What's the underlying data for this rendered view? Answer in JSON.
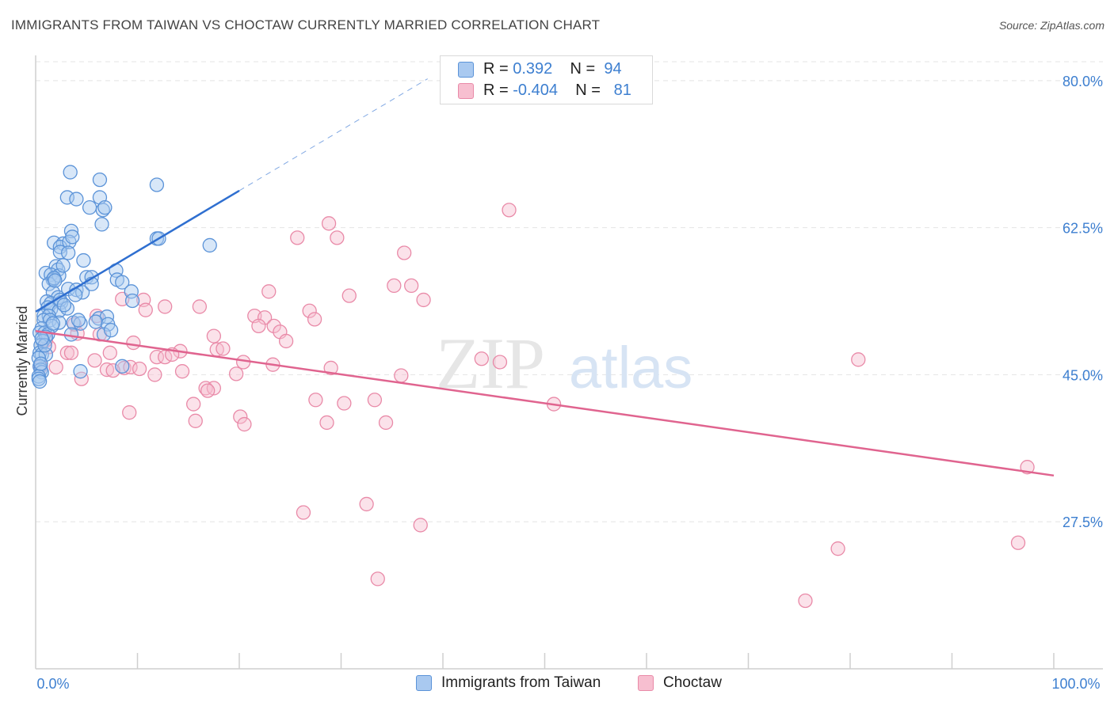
{
  "title": "IMMIGRANTS FROM TAIWAN VS CHOCTAW CURRENTLY MARRIED CORRELATION CHART",
  "source": "Source: ZipAtlas.com",
  "watermark": {
    "zip": "ZIP",
    "atlas": "atlas"
  },
  "colors": {
    "taiwan_fill": "#a9c9f0",
    "taiwan_stroke": "#5b93d8",
    "taiwan_line": "#2f6fd0",
    "choctaw_fill": "#f7bfd0",
    "choctaw_stroke": "#e98aa8",
    "choctaw_line": "#e0648f",
    "tick_label": "#3d7fd0",
    "grid": "#e4e4e4"
  },
  "legend": {
    "taiwan": {
      "r_label": "R = ",
      "r_value": " 0.392",
      "n_label": "N = ",
      "n_value": "94"
    },
    "choctaw": {
      "r_label": "R = ",
      "r_value": "-0.404",
      "n_label": "N = ",
      "n_value": "81"
    }
  },
  "chart_data": {
    "type": "scatter",
    "title": "IMMIGRANTS FROM TAIWAN VS CHOCTAW CURRENTLY MARRIED CORRELATION CHART",
    "xlabel": "",
    "ylabel": "Currently Married",
    "xlim": [
      0,
      100
    ],
    "ylim": [
      10,
      83
    ],
    "x_tick_labels": [
      {
        "value": 0,
        "label": "0.0%"
      },
      {
        "value": 100,
        "label": "100.0%"
      }
    ],
    "y_ticks": [
      {
        "value": 80,
        "label": "80.0%"
      },
      {
        "value": 62.5,
        "label": "62.5%"
      },
      {
        "value": 45,
        "label": "45.0%"
      },
      {
        "value": 27.5,
        "label": "27.5%"
      }
    ],
    "grid": true,
    "legend_position": "top-center",
    "series": [
      {
        "name": "Immigrants from Taiwan",
        "trendline": {
          "x0": 0,
          "y0": 52.5,
          "x1": 20,
          "y1": 66.9,
          "dashed_to_x": 38.5
        },
        "points": [
          [
            3.4,
            69.1
          ],
          [
            6.3,
            68.2
          ],
          [
            11.9,
            67.6
          ],
          [
            3.1,
            66.1
          ],
          [
            4.0,
            65.9
          ],
          [
            6.3,
            66.1
          ],
          [
            5.3,
            64.9
          ],
          [
            6.6,
            64.6
          ],
          [
            6.8,
            64.9
          ],
          [
            6.5,
            62.9
          ],
          [
            3.5,
            62.1
          ],
          [
            11.9,
            61.2
          ],
          [
            12.1,
            61.2
          ],
          [
            1.8,
            60.7
          ],
          [
            2.7,
            60.6
          ],
          [
            2.4,
            60.2
          ],
          [
            3.3,
            60.8
          ],
          [
            3.6,
            61.4
          ],
          [
            17.1,
            60.4
          ],
          [
            2.4,
            59.6
          ],
          [
            3.2,
            59.5
          ],
          [
            4.7,
            58.6
          ],
          [
            2.0,
            57.9
          ],
          [
            2.2,
            57.5
          ],
          [
            7.9,
            57.4
          ],
          [
            1.0,
            57.1
          ],
          [
            1.5,
            56.9
          ],
          [
            1.7,
            56.3
          ],
          [
            2.3,
            56.8
          ],
          [
            5.0,
            56.6
          ],
          [
            5.5,
            56.6
          ],
          [
            8.0,
            56.3
          ],
          [
            8.5,
            56.0
          ],
          [
            1.3,
            55.8
          ],
          [
            3.2,
            55.2
          ],
          [
            4.0,
            55.1
          ],
          [
            1.7,
            54.8
          ],
          [
            2.2,
            54.2
          ],
          [
            4.6,
            54.8
          ],
          [
            9.4,
            54.9
          ],
          [
            3.9,
            54.5
          ],
          [
            9.5,
            53.8
          ],
          [
            1.1,
            53.7
          ],
          [
            1.5,
            53.5
          ],
          [
            2.5,
            53.6
          ],
          [
            1.2,
            53.0
          ],
          [
            1.5,
            52.8
          ],
          [
            2.3,
            52.6
          ],
          [
            0.8,
            52.0
          ],
          [
            1.3,
            52.0
          ],
          [
            0.8,
            51.5
          ],
          [
            1.4,
            51.5
          ],
          [
            6.2,
            51.7
          ],
          [
            7.0,
            51.9
          ],
          [
            5.9,
            51.3
          ],
          [
            2.3,
            51.2
          ],
          [
            3.7,
            51.2
          ],
          [
            4.4,
            51.1
          ],
          [
            7.1,
            51.0
          ],
          [
            1.6,
            50.8
          ],
          [
            0.6,
            50.5
          ],
          [
            0.4,
            50.0
          ],
          [
            0.9,
            50.0
          ],
          [
            1.2,
            49.8
          ],
          [
            3.5,
            49.8
          ],
          [
            6.7,
            49.8
          ],
          [
            1.0,
            49.5
          ],
          [
            0.7,
            49.0
          ],
          [
            0.5,
            48.5
          ],
          [
            0.4,
            47.6
          ],
          [
            0.6,
            47.4
          ],
          [
            1.0,
            47.4
          ],
          [
            0.3,
            47.0
          ],
          [
            0.4,
            46.0
          ],
          [
            0.5,
            45.6
          ],
          [
            0.6,
            45.3
          ],
          [
            0.3,
            44.8
          ],
          [
            0.3,
            44.5
          ],
          [
            0.4,
            44.2
          ],
          [
            4.4,
            45.4
          ],
          [
            8.5,
            46.0
          ],
          [
            5.5,
            55.8
          ],
          [
            2.7,
            58.0
          ],
          [
            1.8,
            56.5
          ],
          [
            2.4,
            53.9
          ],
          [
            3.1,
            52.9
          ],
          [
            1.7,
            51.1
          ],
          [
            0.9,
            48.5
          ],
          [
            0.5,
            46.3
          ],
          [
            4.2,
            51.5
          ],
          [
            0.6,
            49.3
          ],
          [
            7.4,
            50.3
          ],
          [
            1.9,
            56.2
          ],
          [
            2.8,
            53.3
          ]
        ]
      },
      {
        "name": "Choctaw",
        "trendline": {
          "x0": 0,
          "y0": 50.2,
          "x1": 100,
          "y1": 33.0
        },
        "points": [
          [
            46.5,
            64.6
          ],
          [
            28.8,
            63.0
          ],
          [
            25.7,
            61.3
          ],
          [
            29.6,
            61.3
          ],
          [
            36.2,
            59.5
          ],
          [
            22.9,
            54.9
          ],
          [
            30.8,
            54.4
          ],
          [
            35.2,
            55.6
          ],
          [
            36.9,
            55.6
          ],
          [
            38.1,
            53.9
          ],
          [
            10.6,
            53.9
          ],
          [
            12.7,
            53.1
          ],
          [
            16.1,
            53.1
          ],
          [
            10.8,
            52.7
          ],
          [
            26.9,
            52.6
          ],
          [
            27.4,
            51.6
          ],
          [
            21.5,
            52.0
          ],
          [
            22.5,
            51.8
          ],
          [
            6.0,
            52.0
          ],
          [
            21.9,
            50.8
          ],
          [
            23.4,
            50.8
          ],
          [
            24.0,
            50.1
          ],
          [
            4.1,
            49.9
          ],
          [
            6.3,
            49.8
          ],
          [
            17.5,
            49.6
          ],
          [
            24.6,
            49.0
          ],
          [
            9.6,
            48.8
          ],
          [
            17.8,
            48.0
          ],
          [
            18.4,
            48.1
          ],
          [
            14.2,
            47.8
          ],
          [
            7.3,
            47.6
          ],
          [
            11.9,
            47.1
          ],
          [
            12.7,
            47.1
          ],
          [
            13.4,
            47.4
          ],
          [
            3.1,
            47.6
          ],
          [
            3.5,
            47.6
          ],
          [
            5.8,
            46.7
          ],
          [
            20.4,
            46.5
          ],
          [
            23.3,
            46.2
          ],
          [
            29.0,
            45.8
          ],
          [
            43.8,
            46.9
          ],
          [
            45.6,
            46.5
          ],
          [
            80.8,
            46.8
          ],
          [
            8.7,
            45.8
          ],
          [
            9.3,
            45.9
          ],
          [
            10.2,
            45.7
          ],
          [
            7.0,
            45.6
          ],
          [
            7.6,
            45.5
          ],
          [
            14.4,
            45.4
          ],
          [
            19.7,
            45.1
          ],
          [
            11.7,
            45.0
          ],
          [
            35.9,
            44.9
          ],
          [
            4.5,
            44.5
          ],
          [
            16.7,
            43.4
          ],
          [
            17.5,
            43.4
          ],
          [
            16.9,
            43.1
          ],
          [
            27.5,
            42.0
          ],
          [
            33.3,
            42.0
          ],
          [
            30.3,
            41.6
          ],
          [
            50.9,
            41.5
          ],
          [
            15.5,
            41.5
          ],
          [
            9.2,
            40.5
          ],
          [
            20.1,
            40.0
          ],
          [
            15.7,
            39.5
          ],
          [
            20.5,
            39.1
          ],
          [
            28.6,
            39.3
          ],
          [
            34.4,
            39.3
          ],
          [
            32.5,
            29.6
          ],
          [
            26.3,
            28.6
          ],
          [
            37.8,
            27.1
          ],
          [
            78.8,
            24.3
          ],
          [
            96.5,
            25.0
          ],
          [
            33.6,
            20.7
          ],
          [
            75.6,
            18.1
          ],
          [
            97.4,
            34.0
          ],
          [
            0.5,
            46.0
          ],
          [
            1.3,
            48.3
          ],
          [
            2.0,
            45.9
          ],
          [
            3.8,
            51.0
          ],
          [
            8.5,
            54.0
          ],
          [
            1.0,
            49.1
          ]
        ]
      }
    ]
  }
}
